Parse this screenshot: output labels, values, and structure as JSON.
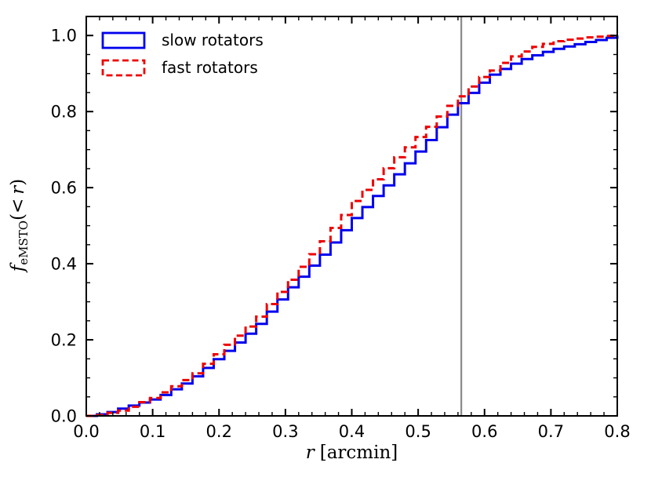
{
  "chart_data": {
    "type": "line",
    "subtype": "step-cumulative-histogram",
    "title": "",
    "xlabel": {
      "var": "r",
      "unit": "[arcmin]"
    },
    "ylabel": {
      "var": "f",
      "sub": "eMSTO",
      "open": "(<",
      "arg": "r",
      "close": ")"
    },
    "xlim": [
      0,
      0.8
    ],
    "ylim": [
      0,
      1.05
    ],
    "xticks": [
      0,
      0.1,
      0.2,
      0.3,
      0.4,
      0.5,
      0.6,
      0.7,
      0.8
    ],
    "xtick_labels": [
      "0.0",
      "0.1",
      "0.2",
      "0.3",
      "0.4",
      "0.5",
      "0.6",
      "0.7",
      "0.8"
    ],
    "yticks": [
      0,
      0.2,
      0.4,
      0.6,
      0.8,
      1.0
    ],
    "ytick_labels": [
      "0.0",
      "0.2",
      "0.4",
      "0.6",
      "0.8",
      "1.0"
    ],
    "x_minor_step": 0.02,
    "y_minor_step": 0.05,
    "grid": false,
    "legend": {
      "position": "upper-left",
      "frame": false
    },
    "bin_start": 0,
    "bin_width": 0.016,
    "n_bins": 50,
    "series": [
      {
        "name": "slow rotators",
        "color": "#0000ee",
        "line_style": "solid",
        "values": [
          0.0,
          0.004,
          0.01,
          0.019,
          0.027,
          0.035,
          0.043,
          0.055,
          0.07,
          0.085,
          0.104,
          0.126,
          0.149,
          0.171,
          0.193,
          0.216,
          0.242,
          0.274,
          0.306,
          0.338,
          0.366,
          0.395,
          0.424,
          0.456,
          0.488,
          0.52,
          0.549,
          0.578,
          0.606,
          0.635,
          0.664,
          0.695,
          0.725,
          0.759,
          0.792,
          0.822,
          0.849,
          0.876,
          0.897,
          0.912,
          0.926,
          0.938,
          0.948,
          0.957,
          0.965,
          0.971,
          0.977,
          0.983,
          0.988,
          0.994,
          1.0
        ]
      },
      {
        "name": "fast rotators",
        "color": "#ee0000",
        "line_style": "dashed",
        "values": [
          0.0,
          0.002,
          0.008,
          0.014,
          0.024,
          0.036,
          0.047,
          0.062,
          0.078,
          0.094,
          0.112,
          0.137,
          0.162,
          0.187,
          0.211,
          0.235,
          0.261,
          0.294,
          0.326,
          0.358,
          0.392,
          0.425,
          0.459,
          0.494,
          0.528,
          0.565,
          0.594,
          0.622,
          0.651,
          0.68,
          0.706,
          0.733,
          0.76,
          0.787,
          0.815,
          0.84,
          0.866,
          0.891,
          0.908,
          0.928,
          0.945,
          0.958,
          0.97,
          0.978,
          0.985,
          0.989,
          0.992,
          0.995,
          0.997,
          0.999,
          1.0
        ]
      }
    ],
    "vline": {
      "x": 0.565,
      "color": "#8a8a8a"
    }
  },
  "colors": {
    "axes": "#000000",
    "background": "#ffffff"
  }
}
